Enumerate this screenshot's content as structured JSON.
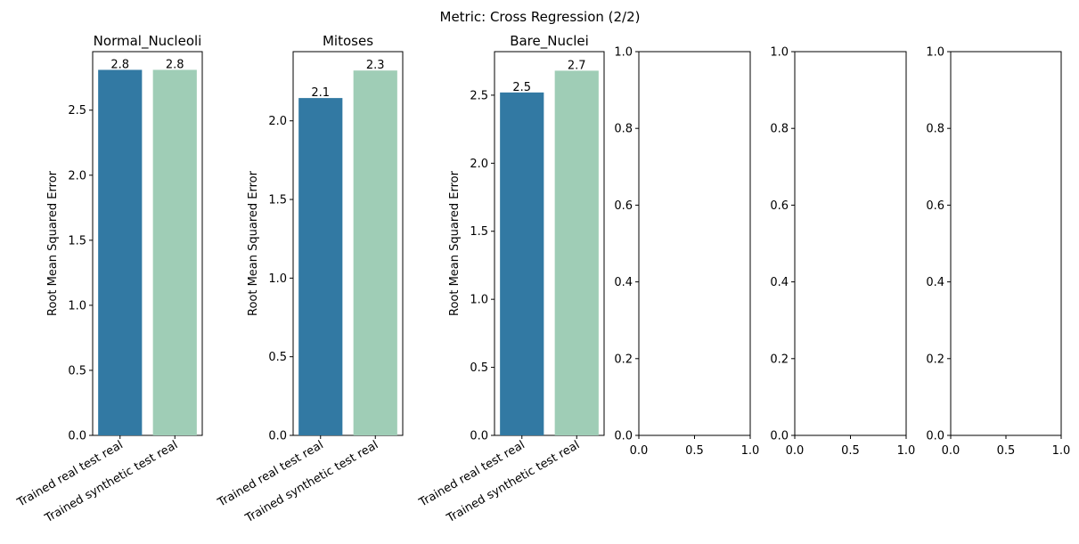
{
  "suptitle": "Metric: Cross Regression (2/2)",
  "colors": {
    "real": "#3279a3",
    "synthetic": "#9fcdb6"
  },
  "chart_data": [
    {
      "type": "bar",
      "title": "Normal_Nucleoli",
      "ylabel": "Root Mean Squared Error",
      "categories": [
        "Trained real test real",
        "Trained synthetic test real"
      ],
      "values": [
        2.81,
        2.81
      ],
      "labels": [
        "2.8",
        "2.8"
      ],
      "ylim": [
        0,
        2.95
      ],
      "yticks": [
        0.0,
        0.5,
        1.0,
        1.5,
        2.0,
        2.5
      ],
      "ytick_labels": [
        "0.0",
        "0.5",
        "1.0",
        "1.5",
        "2.0",
        "2.5"
      ]
    },
    {
      "type": "bar",
      "title": "Mitoses",
      "ylabel": "Root Mean Squared Error",
      "categories": [
        "Trained real test real",
        "Trained synthetic test real"
      ],
      "values": [
        2.145,
        2.32
      ],
      "labels": [
        "2.1",
        "2.3"
      ],
      "ylim": [
        0,
        2.44
      ],
      "yticks": [
        0.0,
        0.5,
        1.0,
        1.5,
        2.0
      ],
      "ytick_labels": [
        "0.0",
        "0.5",
        "1.0",
        "1.5",
        "2.0"
      ]
    },
    {
      "type": "bar",
      "title": "Bare_Nuclei",
      "ylabel": "Root Mean Squared Error",
      "categories": [
        "Trained real test real",
        "Trained synthetic test real"
      ],
      "values": [
        2.52,
        2.68
      ],
      "labels": [
        "2.5",
        "2.7"
      ],
      "ylim": [
        0,
        2.82
      ],
      "yticks": [
        0.0,
        0.5,
        1.0,
        1.5,
        2.0,
        2.5
      ],
      "ytick_labels": [
        "0.0",
        "0.5",
        "1.0",
        "1.5",
        "2.0",
        "2.5"
      ]
    },
    {
      "type": "empty",
      "xlim": [
        0,
        1
      ],
      "ylim": [
        0,
        1
      ],
      "xticks": [
        0.0,
        0.5,
        1.0
      ],
      "xtick_labels": [
        "0.0",
        "0.5",
        "1.0"
      ],
      "yticks": [
        0.0,
        0.2,
        0.4,
        0.6,
        0.8,
        1.0
      ],
      "ytick_labels": [
        "0.0",
        "0.2",
        "0.4",
        "0.6",
        "0.8",
        "1.0"
      ]
    },
    {
      "type": "empty",
      "xlim": [
        0,
        1
      ],
      "ylim": [
        0,
        1
      ],
      "xticks": [
        0.0,
        0.5,
        1.0
      ],
      "xtick_labels": [
        "0.0",
        "0.5",
        "1.0"
      ],
      "yticks": [
        0.0,
        0.2,
        0.4,
        0.6,
        0.8,
        1.0
      ],
      "ytick_labels": [
        "0.0",
        "0.2",
        "0.4",
        "0.6",
        "0.8",
        "1.0"
      ]
    },
    {
      "type": "empty",
      "xlim": [
        0,
        1
      ],
      "ylim": [
        0,
        1
      ],
      "xticks": [
        0.0,
        0.5,
        1.0
      ],
      "xtick_labels": [
        "0.0",
        "0.5",
        "1.0"
      ],
      "yticks": [
        0.0,
        0.2,
        0.4,
        0.6,
        0.8,
        1.0
      ],
      "ytick_labels": [
        "0.0",
        "0.2",
        "0.4",
        "0.6",
        "0.8",
        "1.0"
      ]
    }
  ]
}
